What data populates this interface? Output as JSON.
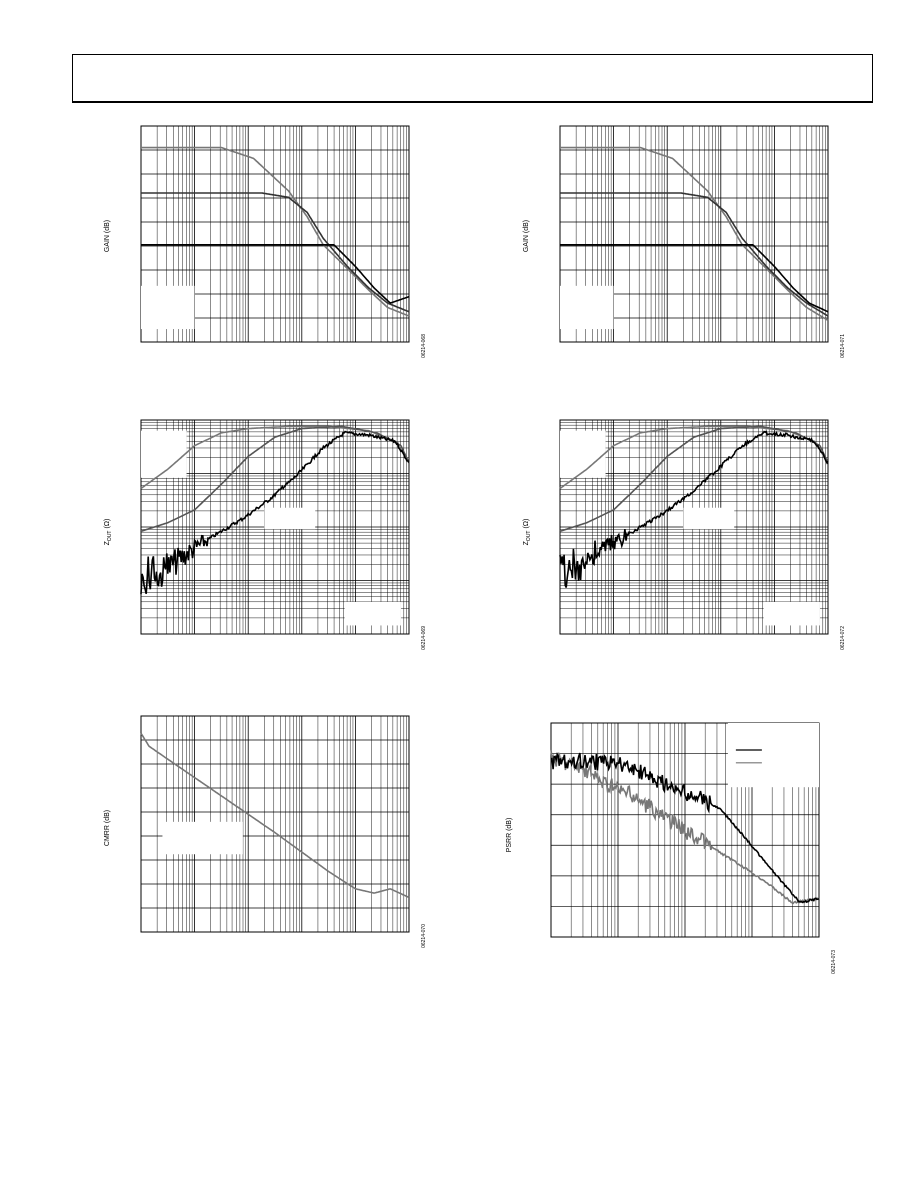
{
  "page": {
    "header": ""
  },
  "charts": [
    {
      "id": "c1",
      "ylabel_main": "GAIN (dB)",
      "ylabel_sub": "",
      "fig_id": "06214-068",
      "log_lines": 5,
      "h_lines": 9,
      "invert_log": false,
      "legend_boxes": [
        {
          "xf": 0.0,
          "yf": 0.74,
          "wf": 0.2,
          "hf": 0.2
        }
      ],
      "series_keys": [
        "gain_low",
        "gain_mid",
        "gain_high"
      ]
    },
    {
      "id": "c2",
      "ylabel_main": "GAIN (dB)",
      "ylabel_sub": "",
      "fig_id": "06214-071",
      "log_lines": 5,
      "h_lines": 9,
      "invert_log": false,
      "legend_boxes": [
        {
          "xf": 0.0,
          "yf": 0.74,
          "wf": 0.2,
          "hf": 0.2
        }
      ],
      "series_keys": [
        "gain_low",
        "gain_mid",
        "gain_high"
      ]
    },
    {
      "id": "c3",
      "ylabel_main": "Z",
      "ylabel_sub": "OUT",
      "ylabel_tail": " (Ω)",
      "fig_id": "06214-069",
      "log_lines": 5,
      "h_lines": 4,
      "log_y": true,
      "legend_boxes": [
        {
          "xf": 0.0,
          "yf": 0.05,
          "wf": 0.17,
          "hf": 0.22
        },
        {
          "xf": 0.46,
          "yf": 0.41,
          "wf": 0.19,
          "hf": 0.1
        },
        {
          "xf": 0.76,
          "yf": 0.85,
          "wf": 0.21,
          "hf": 0.11
        }
      ],
      "series_keys": [
        "z_low",
        "z_mid",
        "z_high"
      ]
    },
    {
      "id": "c4",
      "ylabel_main": "Z",
      "ylabel_sub": "OUT",
      "ylabel_tail": " (Ω)",
      "fig_id": "06214-072",
      "log_lines": 5,
      "h_lines": 4,
      "log_y": true,
      "legend_boxes": [
        {
          "xf": 0.0,
          "yf": 0.05,
          "wf": 0.17,
          "hf": 0.22
        },
        {
          "xf": 0.46,
          "yf": 0.41,
          "wf": 0.19,
          "hf": 0.1
        },
        {
          "xf": 0.76,
          "yf": 0.85,
          "wf": 0.21,
          "hf": 0.11
        }
      ],
      "series_keys": [
        "z_low",
        "z_mid",
        "z_high"
      ]
    },
    {
      "id": "c5",
      "ylabel_main": "CMRR (dB)",
      "ylabel_sub": "",
      "fig_id": "06214-070",
      "log_lines": 5,
      "h_lines": 9,
      "legend_boxes": [
        {
          "xf": 0.08,
          "yf": 0.49,
          "wf": 0.3,
          "hf": 0.15
        }
      ],
      "series_keys": [
        "cmrr"
      ]
    },
    {
      "id": "c6",
      "ylabel_main": "PSRR (dB)",
      "ylabel_sub": "",
      "fig_id": "06214-073",
      "log_lines": 4,
      "h_lines": 7,
      "legend_boxes": [
        {
          "xf": 0.66,
          "yf": 0.0,
          "wf": 0.34,
          "hf": 0.3,
          "lines": true
        }
      ],
      "series_keys": [
        "psrr_pos",
        "psrr_neg"
      ]
    }
  ],
  "chart_data": [
    {
      "type": "line",
      "title": "",
      "xlabel": "",
      "ylabel": "GAIN (dB)",
      "xscale": "log",
      "series": [
        {
          "key": "gain_high",
          "color": "#777777",
          "values": [
            [
              0,
              0.1
            ],
            [
              0.3,
              0.1
            ],
            [
              0.42,
              0.15
            ],
            [
              0.55,
              0.3
            ],
            [
              0.62,
              0.42
            ],
            [
              0.68,
              0.55
            ],
            [
              0.77,
              0.66
            ],
            [
              0.85,
              0.76
            ],
            [
              0.92,
              0.84
            ],
            [
              1,
              0.88
            ]
          ]
        },
        {
          "key": "gain_mid",
          "color": "#333333",
          "values": [
            [
              0,
              0.31
            ],
            [
              0.45,
              0.31
            ],
            [
              0.55,
              0.33
            ],
            [
              0.62,
              0.4
            ],
            [
              0.68,
              0.52
            ],
            [
              0.77,
              0.65
            ],
            [
              0.85,
              0.75
            ],
            [
              0.92,
              0.82
            ],
            [
              1,
              0.86
            ]
          ]
        },
        {
          "key": "gain_low",
          "color": "#000000",
          "values": [
            [
              0,
              0.55
            ],
            [
              0.6,
              0.55
            ],
            [
              0.72,
              0.55
            ],
            [
              0.8,
              0.65
            ],
            [
              0.87,
              0.75
            ],
            [
              0.93,
              0.82
            ],
            [
              1,
              0.79
            ]
          ]
        }
      ]
    },
    {
      "type": "line",
      "title": "",
      "xlabel": "",
      "ylabel": "GAIN (dB)",
      "xscale": "log",
      "series": [
        {
          "key": "gain_high",
          "color": "#777777",
          "values": [
            [
              0,
              0.1
            ],
            [
              0.3,
              0.1
            ],
            [
              0.42,
              0.15
            ],
            [
              0.55,
              0.3
            ],
            [
              0.62,
              0.42
            ],
            [
              0.68,
              0.55
            ],
            [
              0.77,
              0.66
            ],
            [
              0.85,
              0.76
            ],
            [
              0.92,
              0.84
            ],
            [
              1,
              0.9
            ]
          ]
        },
        {
          "key": "gain_mid",
          "color": "#333333",
          "values": [
            [
              0,
              0.31
            ],
            [
              0.45,
              0.31
            ],
            [
              0.55,
              0.33
            ],
            [
              0.62,
              0.4
            ],
            [
              0.68,
              0.52
            ],
            [
              0.77,
              0.65
            ],
            [
              0.85,
              0.75
            ],
            [
              0.92,
              0.82
            ],
            [
              1,
              0.88
            ]
          ]
        },
        {
          "key": "gain_low",
          "color": "#000000",
          "values": [
            [
              0,
              0.55
            ],
            [
              0.6,
              0.55
            ],
            [
              0.72,
              0.55
            ],
            [
              0.8,
              0.65
            ],
            [
              0.87,
              0.75
            ],
            [
              0.93,
              0.82
            ],
            [
              1,
              0.86
            ]
          ]
        }
      ]
    },
    {
      "type": "line",
      "title": "",
      "xlabel": "",
      "ylabel": "ZOUT (Ω)",
      "xscale": "log",
      "yscale": "log",
      "series": [
        {
          "key": "z_low",
          "color": "#777777",
          "values": [
            [
              0,
              0.32
            ],
            [
              0.1,
              0.23
            ],
            [
              0.2,
              0.12
            ],
            [
              0.3,
              0.06
            ],
            [
              0.4,
              0.04
            ],
            [
              0.55,
              0.03
            ],
            [
              0.7,
              0.03
            ],
            [
              0.85,
              0.05
            ],
            [
              0.95,
              0.1
            ],
            [
              1,
              0.2
            ]
          ]
        },
        {
          "key": "z_mid",
          "color": "#555555",
          "values": [
            [
              0,
              0.52
            ],
            [
              0.1,
              0.48
            ],
            [
              0.2,
              0.42
            ],
            [
              0.3,
              0.3
            ],
            [
              0.4,
              0.17
            ],
            [
              0.5,
              0.08
            ],
            [
              0.6,
              0.04
            ],
            [
              0.75,
              0.03
            ],
            [
              0.88,
              0.06
            ],
            [
              0.97,
              0.12
            ],
            [
              1,
              0.2
            ]
          ]
        },
        {
          "key": "z_high",
          "color": "#000000",
          "noise": true,
          "values": [
            [
              0,
              0.73
            ],
            [
              0.07,
              0.72
            ],
            [
              0.14,
              0.65
            ],
            [
              0.22,
              0.58
            ],
            [
              0.3,
              0.52
            ],
            [
              0.38,
              0.46
            ],
            [
              0.48,
              0.37
            ],
            [
              0.58,
              0.26
            ],
            [
              0.68,
              0.13
            ],
            [
              0.76,
              0.06
            ],
            [
              0.85,
              0.07
            ],
            [
              0.95,
              0.1
            ],
            [
              1,
              0.2
            ]
          ]
        }
      ]
    },
    {
      "type": "line",
      "title": "",
      "xlabel": "",
      "ylabel": "ZOUT (Ω)",
      "xscale": "log",
      "yscale": "log",
      "series": [
        {
          "key": "z_low",
          "color": "#777777",
          "values": [
            [
              0,
              0.32
            ],
            [
              0.1,
              0.23
            ],
            [
              0.2,
              0.12
            ],
            [
              0.3,
              0.06
            ],
            [
              0.4,
              0.04
            ],
            [
              0.55,
              0.03
            ],
            [
              0.7,
              0.03
            ],
            [
              0.85,
              0.05
            ],
            [
              0.95,
              0.1
            ],
            [
              1,
              0.2
            ]
          ]
        },
        {
          "key": "z_mid",
          "color": "#555555",
          "values": [
            [
              0,
              0.52
            ],
            [
              0.1,
              0.48
            ],
            [
              0.2,
              0.42
            ],
            [
              0.3,
              0.3
            ],
            [
              0.4,
              0.17
            ],
            [
              0.5,
              0.08
            ],
            [
              0.6,
              0.04
            ],
            [
              0.75,
              0.03
            ],
            [
              0.88,
              0.06
            ],
            [
              0.97,
              0.12
            ],
            [
              1,
              0.2
            ]
          ]
        },
        {
          "key": "z_high",
          "color": "#000000",
          "noise": true,
          "values": [
            [
              0,
              0.7
            ],
            [
              0.07,
              0.68
            ],
            [
              0.14,
              0.62
            ],
            [
              0.22,
              0.56
            ],
            [
              0.3,
              0.5
            ],
            [
              0.38,
              0.44
            ],
            [
              0.48,
              0.35
            ],
            [
              0.58,
              0.24
            ],
            [
              0.68,
              0.12
            ],
            [
              0.76,
              0.06
            ],
            [
              0.85,
              0.07
            ],
            [
              0.95,
              0.1
            ],
            [
              1,
              0.2
            ]
          ]
        }
      ]
    },
    {
      "type": "line",
      "title": "",
      "xlabel": "",
      "ylabel": "CMRR (dB)",
      "xscale": "log",
      "series": [
        {
          "key": "cmrr",
          "color": "#777777",
          "values": [
            [
              0,
              0.08
            ],
            [
              0.03,
              0.14
            ],
            [
              0.1,
              0.2
            ],
            [
              0.3,
              0.37
            ],
            [
              0.5,
              0.54
            ],
            [
              0.7,
              0.72
            ],
            [
              0.8,
              0.8
            ],
            [
              0.87,
              0.82
            ],
            [
              0.93,
              0.8
            ],
            [
              1,
              0.84
            ]
          ]
        }
      ]
    },
    {
      "type": "line",
      "title": "",
      "xlabel": "",
      "ylabel": "PSRR (dB)",
      "xscale": "log",
      "series": [
        {
          "key": "psrr_neg",
          "color": "#777777",
          "noise": true,
          "values": [
            [
              0,
              0.16
            ],
            [
              0.1,
              0.2
            ],
            [
              0.2,
              0.28
            ],
            [
              0.3,
              0.34
            ],
            [
              0.4,
              0.42
            ],
            [
              0.5,
              0.5
            ],
            [
              0.6,
              0.58
            ],
            [
              0.7,
              0.66
            ],
            [
              0.8,
              0.74
            ],
            [
              0.9,
              0.84
            ],
            [
              1,
              0.82
            ]
          ]
        },
        {
          "key": "psrr_pos",
          "color": "#000000",
          "noise": true,
          "values": [
            [
              0,
              0.18
            ],
            [
              0.15,
              0.18
            ],
            [
              0.3,
              0.2
            ],
            [
              0.45,
              0.3
            ],
            [
              0.55,
              0.35
            ],
            [
              0.63,
              0.4
            ],
            [
              0.7,
              0.5
            ],
            [
              0.78,
              0.62
            ],
            [
              0.86,
              0.74
            ],
            [
              0.93,
              0.84
            ],
            [
              1,
              0.82
            ]
          ]
        }
      ]
    }
  ]
}
